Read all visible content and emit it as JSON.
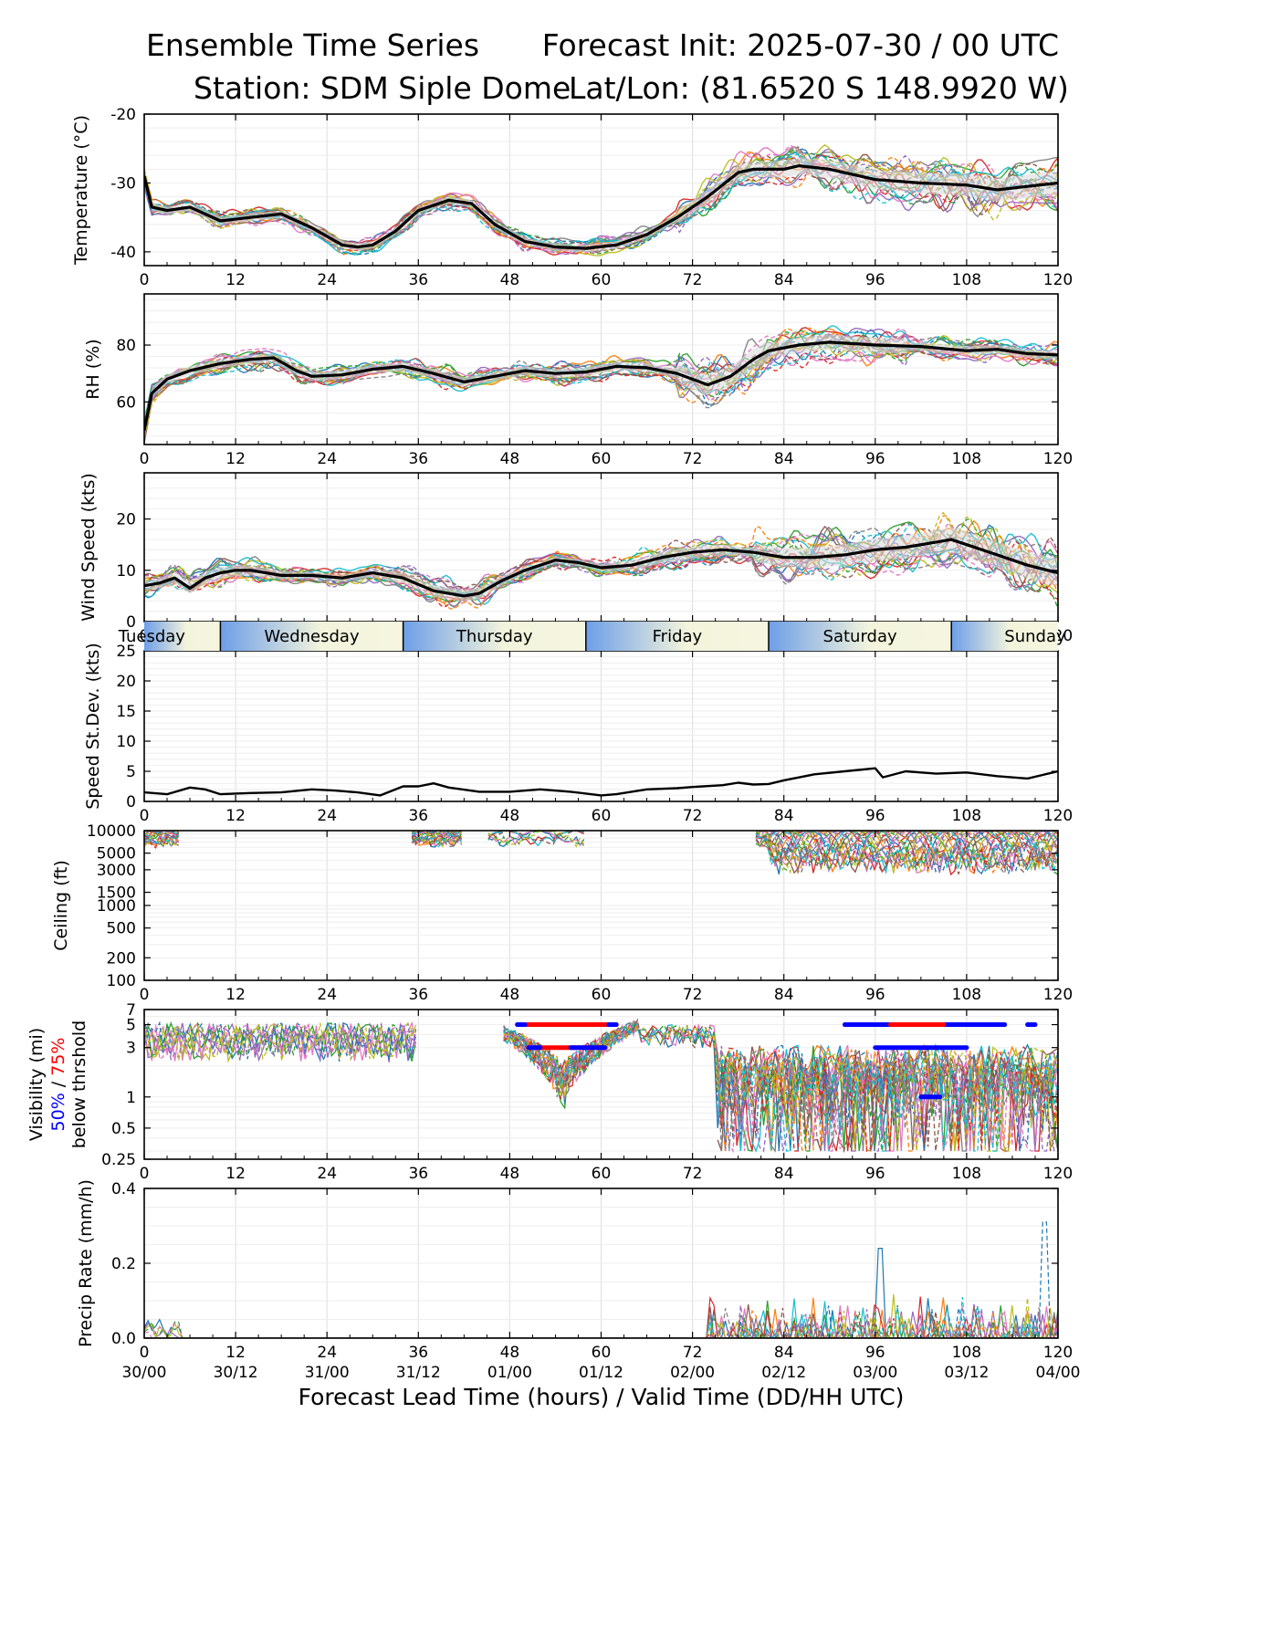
{
  "header": {
    "title_left": "Ensemble Time Series",
    "title_right": "Forecast Init: 2025-07-30 / 00 UTC",
    "station": "Station: SDM  Siple Dome",
    "latlon": "Lat/Lon: (81.6520 S 148.9920 W)"
  },
  "x_axis": {
    "label": "Forecast Lead Time (hours) / Valid Time (DD/HH UTC)",
    "ticks": [
      0,
      12,
      24,
      36,
      48,
      60,
      72,
      84,
      96,
      108,
      120
    ],
    "valid_time_labels": [
      "30/00",
      "30/12",
      "31/00",
      "31/12",
      "01/00",
      "01/12",
      "02/00",
      "02/12",
      "03/00",
      "03/12",
      "04/00"
    ]
  },
  "day_band": {
    "days": [
      "Tuesday",
      "Wednesday",
      "Thursday",
      "Friday",
      "Saturday",
      "Sunday"
    ],
    "boundaries_hours": [
      10,
      34,
      58,
      82,
      106
    ]
  },
  "colors": {
    "mean_line": "#000000",
    "spread_band": "#d9d9d9",
    "threshold_50": "#0000ff",
    "threshold_75": "#ff0000",
    "members": [
      "#1f77b4",
      "#ff7f0e",
      "#2ca02c",
      "#d62728",
      "#9467bd",
      "#8c564b",
      "#e377c2",
      "#7f7f7f",
      "#bcbd22",
      "#17becf"
    ]
  },
  "chart_data": [
    {
      "type": "line",
      "ylabel": "Temperature (°C)",
      "ylim": [
        -42,
        -20
      ],
      "yticks": [
        -40,
        -30,
        -20
      ],
      "grid": true,
      "ensemble_members": 20,
      "series": [
        {
          "name": "",
          "x": [
            0,
            1,
            3,
            6,
            10,
            14,
            18,
            22,
            26,
            28,
            30,
            33,
            36,
            40,
            43,
            46,
            50,
            54,
            58,
            62,
            66,
            70,
            74,
            78,
            80,
            84,
            86,
            90,
            96,
            102,
            108,
            112,
            116,
            120
          ],
          "y": [
            -29,
            -33.5,
            -34,
            -33.5,
            -35.5,
            -35,
            -34.5,
            -36.5,
            -39,
            -39.3,
            -39,
            -37,
            -34,
            -32.5,
            -33,
            -36,
            -38.5,
            -39.3,
            -39.5,
            -39,
            -37.5,
            -35,
            -32,
            -28.5,
            -28,
            -28,
            -27.5,
            -28,
            -29.5,
            -30,
            -30.3,
            -31,
            -30.5,
            -30
          ]
        }
      ]
    },
    {
      "type": "line",
      "ylabel": "RH (%)",
      "ylim": [
        45,
        98
      ],
      "yticks": [
        60,
        80
      ],
      "grid": true,
      "ensemble_members": 20,
      "series": [
        {
          "name": "",
          "x": [
            0,
            1,
            3,
            6,
            10,
            14,
            17,
            20,
            22,
            26,
            30,
            34,
            38,
            42,
            46,
            50,
            54,
            58,
            62,
            66,
            70,
            74,
            77,
            80,
            82,
            86,
            90,
            96,
            102,
            108,
            112,
            116,
            120
          ],
          "y": [
            50,
            63,
            68,
            71,
            73.5,
            75,
            75.5,
            71,
            69,
            69.5,
            71.5,
            72.5,
            70,
            67,
            69,
            71,
            70,
            70.5,
            72.5,
            72,
            70,
            66,
            69,
            75,
            78,
            80,
            81,
            80,
            79.5,
            78,
            78.5,
            77,
            76.5
          ]
        }
      ]
    },
    {
      "type": "line",
      "ylabel": "Wind Speed (kts)",
      "ylim": [
        0,
        29
      ],
      "yticks": [
        0,
        10,
        20
      ],
      "grid": true,
      "ensemble_members": 20,
      "series": [
        {
          "name": "",
          "x": [
            0,
            2,
            4,
            6,
            8,
            10,
            12,
            14,
            18,
            22,
            26,
            30,
            34,
            38,
            42,
            44,
            47,
            50,
            54,
            57,
            60,
            64,
            68,
            72,
            76,
            80,
            84,
            88,
            92,
            96,
            100,
            104,
            106,
            108,
            112,
            116,
            120
          ],
          "y": [
            7,
            7.5,
            8.5,
            6.5,
            8.5,
            9.5,
            10,
            10,
            9,
            9,
            8.5,
            9.5,
            8.5,
            6,
            5,
            5.5,
            8,
            10,
            12,
            11.5,
            10.5,
            11,
            12.5,
            13.5,
            14,
            13.5,
            12.5,
            12.5,
            13,
            14,
            14.5,
            15.5,
            16,
            15,
            13,
            11,
            9.5
          ]
        }
      ]
    },
    {
      "type": "line",
      "ylabel": "Speed St.Dev. (kts)",
      "ylim": [
        0,
        25
      ],
      "yticks": [
        0,
        5,
        10,
        15,
        20,
        25
      ],
      "grid": true,
      "series": [
        {
          "name": "",
          "x": [
            0,
            3,
            6,
            8,
            10,
            14,
            18,
            22,
            25,
            28,
            31,
            34,
            36,
            38,
            40,
            44,
            48,
            52,
            56,
            60,
            62,
            66,
            70,
            72,
            76,
            78,
            80,
            82,
            84,
            88,
            92,
            96,
            97,
            100,
            104,
            108,
            112,
            116,
            120
          ],
          "y": [
            1.5,
            1.2,
            2.3,
            2,
            1.2,
            1.4,
            1.5,
            2,
            1.8,
            1.5,
            1,
            2.5,
            2.5,
            3,
            2.3,
            1.6,
            1.6,
            2,
            1.6,
            1,
            1.2,
            2,
            2.2,
            2.4,
            2.7,
            3.1,
            2.8,
            2.9,
            3.5,
            4.5,
            5,
            5.5,
            4,
            5,
            4.6,
            4.8,
            4.2,
            3.8,
            5
          ]
        }
      ]
    },
    {
      "type": "line",
      "ylabel": "Ceiling (ft)",
      "yscale": "log",
      "ylim": [
        100,
        10000
      ],
      "yticks": [
        100,
        200,
        500,
        1000,
        1500,
        3000,
        5000,
        10000
      ],
      "grid": true,
      "ensemble_members": 20
    },
    {
      "type": "line",
      "ylabel_lines": [
        "Visibility (mi)",
        "50%",
        "/",
        "75%",
        "below thrshold"
      ],
      "yscale": "log",
      "ylim": [
        0.25,
        7
      ],
      "yticks": [
        0.25,
        0.5,
        1,
        3,
        5,
        7
      ],
      "grid": true,
      "ensemble_members": 20,
      "threshold_bars": [
        {
          "pct": 75,
          "value": 5,
          "start": 49,
          "end": 62
        },
        {
          "pct": 50,
          "value": 5,
          "start": 49,
          "end": 50
        },
        {
          "pct": 50,
          "value": 5,
          "start": 61,
          "end": 62
        },
        {
          "pct": 75,
          "value": 3,
          "start": 51,
          "end": 60
        },
        {
          "pct": 50,
          "value": 3,
          "start": 50.5,
          "end": 52
        },
        {
          "pct": 50,
          "value": 3,
          "start": 56,
          "end": 60.5
        },
        {
          "pct": 50,
          "value": 5,
          "start": 92,
          "end": 113
        },
        {
          "pct": 75,
          "value": 5,
          "start": 98,
          "end": 105
        },
        {
          "pct": 50,
          "value": 5,
          "start": 116,
          "end": 117
        },
        {
          "pct": 50,
          "value": 3,
          "start": 96,
          "end": 108
        },
        {
          "pct": 50,
          "value": 1,
          "start": 102,
          "end": 104.5
        }
      ]
    },
    {
      "type": "line",
      "ylabel": "Precip Rate (mm/h)",
      "ylim": [
        0,
        0.4
      ],
      "yticks": [
        0.0,
        0.2,
        0.4
      ],
      "yticklabels": [
        "0.0",
        "0.2",
        "0.4"
      ],
      "grid": true,
      "ensemble_members": 20
    }
  ]
}
